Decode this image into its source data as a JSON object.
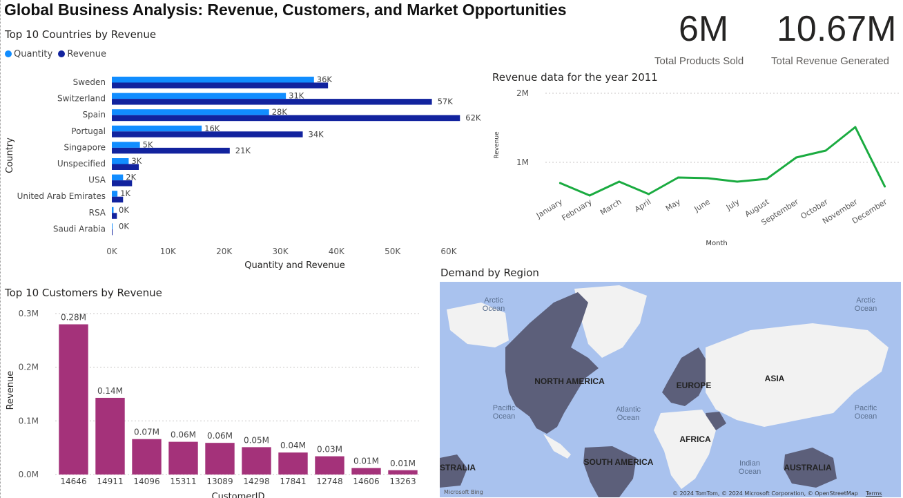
{
  "page_title": "Global Business Analysis: Revenue, Customers, and Market Opportunities",
  "cards": [
    {
      "value": "6M",
      "label": "Total Products Sold"
    },
    {
      "value": "10.67M",
      "label": "Total Revenue Generated"
    }
  ],
  "colors": {
    "quantity": "#118dff",
    "revenue": "#12239e",
    "line": "#1aab40",
    "customer_bar": "#a4327a",
    "ocean": "#a9c2ee",
    "land": "#f2f2f2",
    "highlight_land": "#5c5f7a"
  },
  "chart_data": [
    {
      "type": "bar",
      "orientation": "horizontal",
      "title": "Top 10 Countries by Revenue",
      "xlabel": "Quantity and Revenue",
      "ylabel": "Country",
      "legend_position": "top-left",
      "categories": [
        "Sweden",
        "Switzerland",
        "Spain",
        "Portugal",
        "Singapore",
        "Unspecified",
        "USA",
        "United Arab Emirates",
        "RSA",
        "Saudi Arabia"
      ],
      "series": [
        {
          "name": "Quantity",
          "values": [
            36000,
            31000,
            28000,
            16000,
            5000,
            3000,
            2000,
            1000,
            300,
            0
          ],
          "labels": [
            "36K",
            "31K",
            "28K",
            "16K",
            "5K",
            "3K",
            "2K",
            "1K",
            "0K",
            "0K"
          ]
        },
        {
          "name": "Revenue",
          "values": [
            38500,
            57000,
            62000,
            34000,
            21000,
            4800,
            3600,
            2000,
            900,
            100
          ],
          "labels": [
            "",
            "57K",
            "62K",
            "34K",
            "21K",
            "",
            "",
            "",
            "",
            ""
          ]
        }
      ],
      "xticks": [
        "0K",
        "10K",
        "20K",
        "30K",
        "40K",
        "50K",
        "60K"
      ],
      "xlim": [
        0,
        60000
      ],
      "grid": false
    },
    {
      "type": "line",
      "title": "Revenue data for the year 2011",
      "xlabel": "Month",
      "ylabel": "Revenue",
      "categories": [
        "January",
        "February",
        "March",
        "April",
        "May",
        "June",
        "July",
        "August",
        "September",
        "October",
        "November",
        "December"
      ],
      "values": [
        700000,
        520000,
        720000,
        540000,
        780000,
        770000,
        720000,
        760000,
        1070000,
        1170000,
        1510000,
        650000
      ],
      "yticks": [
        "1M",
        "2M"
      ],
      "ylim": [
        0,
        2000000
      ],
      "grid": true
    },
    {
      "type": "bar",
      "title": "Top 10 Customers by Revenue",
      "xlabel": "CustomerID",
      "ylabel": "Revenue",
      "categories": [
        "14646",
        "14911",
        "14096",
        "15311",
        "13089",
        "14298",
        "17841",
        "12748",
        "14606",
        "13263"
      ],
      "values": [
        280000,
        143000,
        66000,
        61000,
        59000,
        51000,
        41000,
        34000,
        12000,
        8000
      ],
      "labels": [
        "0.28M",
        "0.14M",
        "0.07M",
        "0.06M",
        "0.06M",
        "0.05M",
        "0.04M",
        "0.03M",
        "0.01M",
        "0.01M"
      ],
      "yticks": [
        "0.0M",
        "0.1M",
        "0.2M",
        "0.3M"
      ],
      "ylim": [
        0,
        300000
      ],
      "grid": true
    }
  ],
  "map": {
    "title": "Demand by Region",
    "regions": [
      "NORTH AMERICA",
      "EUROPE",
      "ASIA",
      "AFRICA",
      "SOUTH AMERICA",
      "AUSTRALIA",
      "STRALIA"
    ],
    "oceans": [
      [
        "Arctic",
        "Ocean"
      ],
      [
        "Arctic",
        "Ocean"
      ],
      [
        "Atlantic",
        "Ocean"
      ],
      [
        "Pacific",
        "Ocean"
      ],
      [
        "Pacific",
        "Ocean"
      ],
      [
        "Indian",
        "Ocean"
      ]
    ],
    "attribution": "© 2024 TomTom, © 2024 Microsoft Corporation, © OpenStreetMap",
    "terms": "Terms",
    "logo": "Microsoft Bing"
  }
}
